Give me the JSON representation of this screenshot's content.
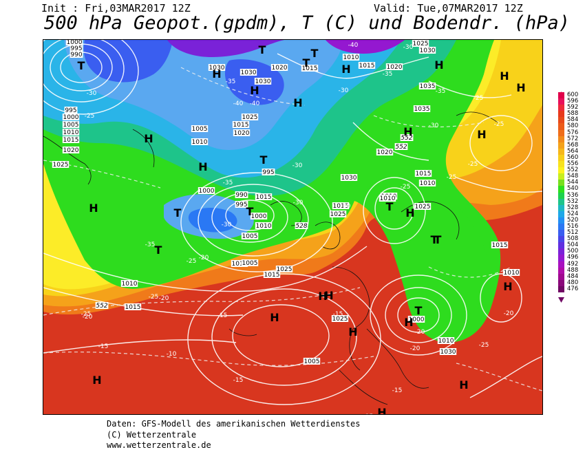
{
  "header": {
    "init": "Init : Fri,03MAR2017 12Z",
    "valid": "Valid: Tue,07MAR2017 12Z",
    "title": "500 hPa Geopot.(gpdm), T (C) und Bodendr. (hPa)"
  },
  "map": {
    "pressure_labels": [
      {
        "text": "1000"
      },
      {
        "text": "995"
      },
      {
        "text": "990"
      },
      {
        "text": "995"
      },
      {
        "text": "1000"
      },
      {
        "text": "1005"
      },
      {
        "text": "1010"
      },
      {
        "text": "1015"
      },
      {
        "text": "1020"
      },
      {
        "text": "1025"
      },
      {
        "text": "1030"
      },
      {
        "text": "1030"
      },
      {
        "text": "1020"
      },
      {
        "text": "1015"
      },
      {
        "text": "1010"
      },
      {
        "text": "1015"
      },
      {
        "text": "1020"
      },
      {
        "text": "1025"
      },
      {
        "text": "1030"
      },
      {
        "text": "1035"
      },
      {
        "text": "1035"
      },
      {
        "text": "1020"
      },
      {
        "text": "1015"
      },
      {
        "text": "1010"
      },
      {
        "text": "1010"
      },
      {
        "text": "1025"
      },
      {
        "text": "1030"
      },
      {
        "text": "1025"
      },
      {
        "text": "1015"
      },
      {
        "text": "1010"
      },
      {
        "text": "995"
      },
      {
        "text": "1000"
      },
      {
        "text": "1005"
      },
      {
        "text": "1010"
      },
      {
        "text": "1015"
      },
      {
        "text": "1020"
      },
      {
        "text": "1025"
      },
      {
        "text": "1030"
      },
      {
        "text": "1025"
      },
      {
        "text": "1015"
      },
      {
        "text": "1010"
      },
      {
        "text": "1005"
      },
      {
        "text": "1000"
      },
      {
        "text": "1010"
      },
      {
        "text": "1015"
      },
      {
        "text": "1010"
      },
      {
        "text": "1030"
      },
      {
        "text": "1025"
      },
      {
        "text": "1005"
      },
      {
        "text": "1015"
      },
      {
        "text": "1010"
      },
      {
        "text": "1000"
      },
      {
        "text": "1010"
      },
      {
        "text": "1015"
      },
      {
        "text": "995"
      },
      {
        "text": "990"
      },
      {
        "text": "1005"
      }
    ],
    "temp_labels": [
      {
        "text": "-40"
      },
      {
        "text": "-35"
      },
      {
        "text": "-30"
      },
      {
        "text": "-40"
      },
      {
        "text": "-35"
      },
      {
        "text": "-30"
      },
      {
        "text": "-30"
      },
      {
        "text": "-25"
      },
      {
        "text": "-35"
      },
      {
        "text": "-35"
      },
      {
        "text": "-30"
      },
      {
        "text": "-25"
      },
      {
        "text": "-25"
      },
      {
        "text": "-30"
      },
      {
        "text": "-30"
      },
      {
        "text": "-25"
      },
      {
        "text": "-30"
      },
      {
        "text": "-25"
      },
      {
        "text": "-20"
      },
      {
        "text": "-25"
      },
      {
        "text": "-20"
      },
      {
        "text": "-25"
      },
      {
        "text": "-20"
      },
      {
        "text": "-15"
      },
      {
        "text": "-15"
      },
      {
        "text": "-20"
      },
      {
        "text": "-10"
      },
      {
        "text": "-15"
      },
      {
        "text": "-15"
      },
      {
        "text": "-15"
      },
      {
        "text": "-20"
      },
      {
        "text": "-25"
      },
      {
        "text": "-35"
      },
      {
        "text": "-40"
      },
      {
        "text": "-30"
      },
      {
        "text": "-25"
      },
      {
        "text": "-20"
      },
      {
        "text": "-15"
      },
      {
        "text": "-25"
      }
    ],
    "geo_labels": [
      {
        "text": "552"
      },
      {
        "text": "552"
      },
      {
        "text": "528"
      },
      {
        "text": "552"
      }
    ],
    "centers": [
      {
        "text": "T"
      },
      {
        "text": "H"
      },
      {
        "text": "T"
      },
      {
        "text": "H"
      },
      {
        "text": "H"
      },
      {
        "text": "T"
      },
      {
        "text": "H"
      },
      {
        "text": "T"
      },
      {
        "text": "H"
      },
      {
        "text": "T"
      },
      {
        "text": "T"
      },
      {
        "text": "T"
      },
      {
        "text": "T"
      },
      {
        "text": "H"
      },
      {
        "text": "H"
      },
      {
        "text": "H"
      },
      {
        "text": "H"
      },
      {
        "text": "H"
      },
      {
        "text": "H"
      },
      {
        "text": "T"
      },
      {
        "text": "H"
      },
      {
        "text": "T"
      },
      {
        "text": "H"
      },
      {
        "text": "T"
      },
      {
        "text": "H"
      },
      {
        "text": "H"
      },
      {
        "text": "H"
      },
      {
        "text": "H"
      },
      {
        "text": "H"
      },
      {
        "text": "H"
      },
      {
        "text": "H"
      },
      {
        "text": "H"
      },
      {
        "text": "T"
      },
      {
        "text": "H"
      }
    ]
  },
  "legend": {
    "values": [
      "600",
      "596",
      "592",
      "588",
      "584",
      "580",
      "576",
      "572",
      "568",
      "564",
      "560",
      "556",
      "552",
      "548",
      "544",
      "540",
      "536",
      "532",
      "528",
      "524",
      "520",
      "516",
      "512",
      "508",
      "504",
      "500",
      "496",
      "492",
      "488",
      "484",
      "480",
      "476"
    ],
    "colors": [
      "#e0004a",
      "#e8105a",
      "#ee2a3a",
      "#e83a1c",
      "#e84a1a",
      "#ec5c1a",
      "#ef6e1a",
      "#f28a1a",
      "#f4a21a",
      "#f6b81a",
      "#f8cf1a",
      "#f8e21e",
      "#fcf21e",
      "#c8ee1e",
      "#78e01e",
      "#2ee01e",
      "#1ed24e",
      "#1ec48a",
      "#1eb8c4",
      "#1ea8e8",
      "#2290f4",
      "#2a78f4",
      "#3a5ef0",
      "#4a44e8",
      "#6030e0",
      "#7a22d8",
      "#9418d0",
      "#a812c0",
      "#b00ea8",
      "#a00a90",
      "#8a087a",
      "#700864"
    ]
  },
  "footer": {
    "line1": "Daten: GFS-Modell des amerikanischen Wetterdienstes",
    "line2": "(C) Wetterzentrale",
    "line3": "www.wetterzentrale.de"
  }
}
